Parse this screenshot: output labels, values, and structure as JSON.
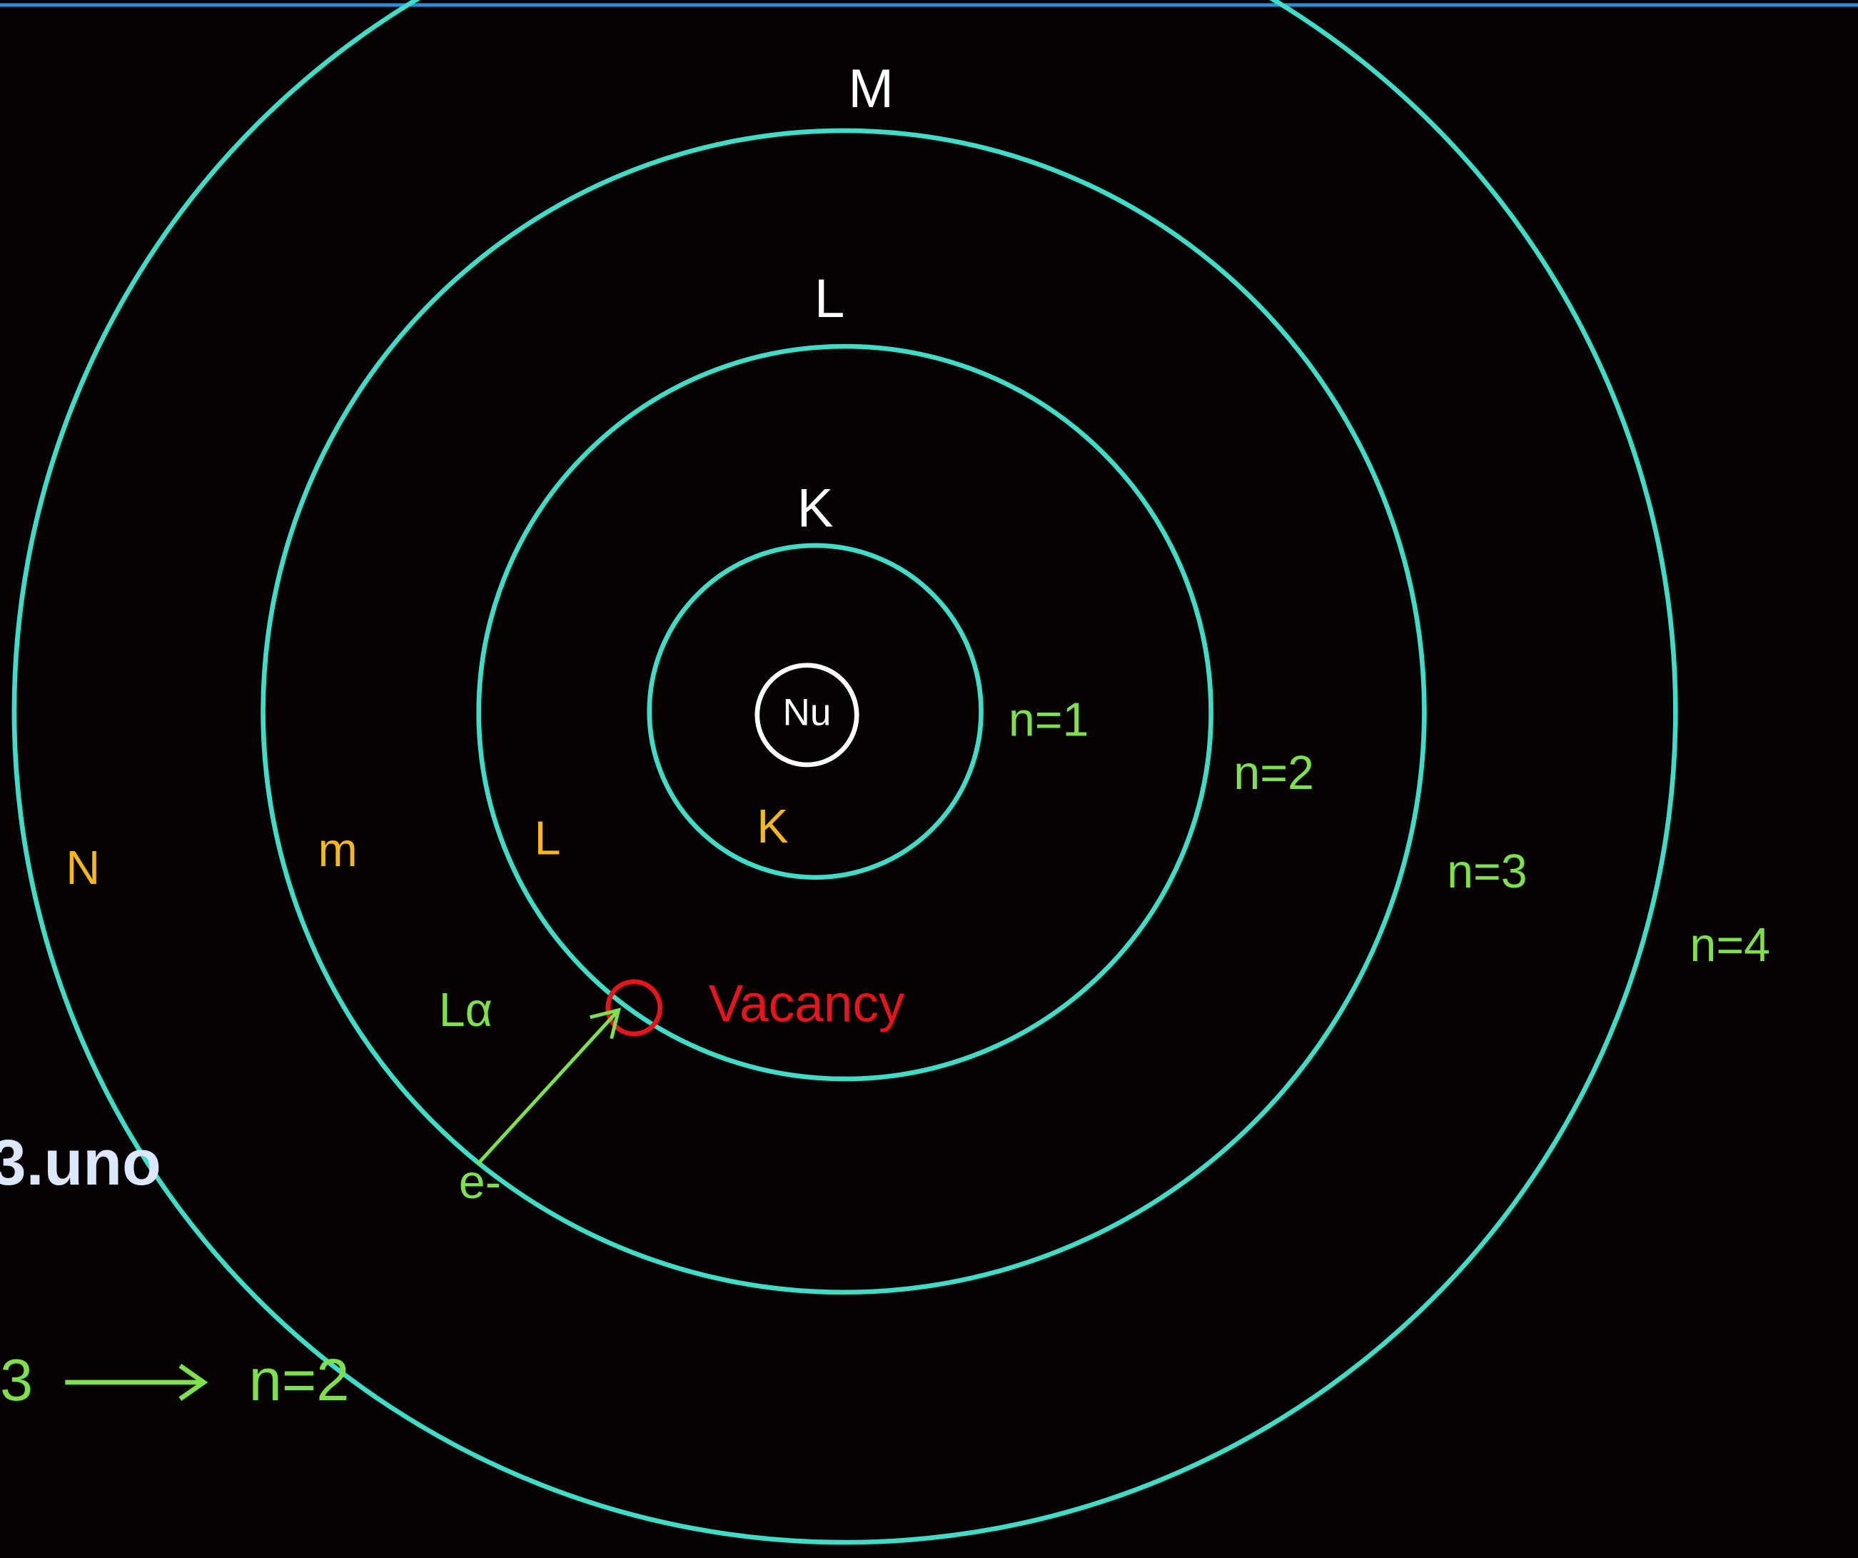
{
  "shell_labels": [
    "M",
    "L",
    "K"
  ],
  "nucleus": "Nu",
  "quantum_labels": [
    "n=1",
    "n=2",
    "n=3",
    "n=4"
  ],
  "shell_letters": [
    "N",
    "m",
    "L",
    "K"
  ],
  "transition": "Lα",
  "vacancy": "Vacancy",
  "electron": "e-",
  "watermark": "3.uno",
  "bottom_note": {
    "from": "3",
    "to": "n=2"
  }
}
